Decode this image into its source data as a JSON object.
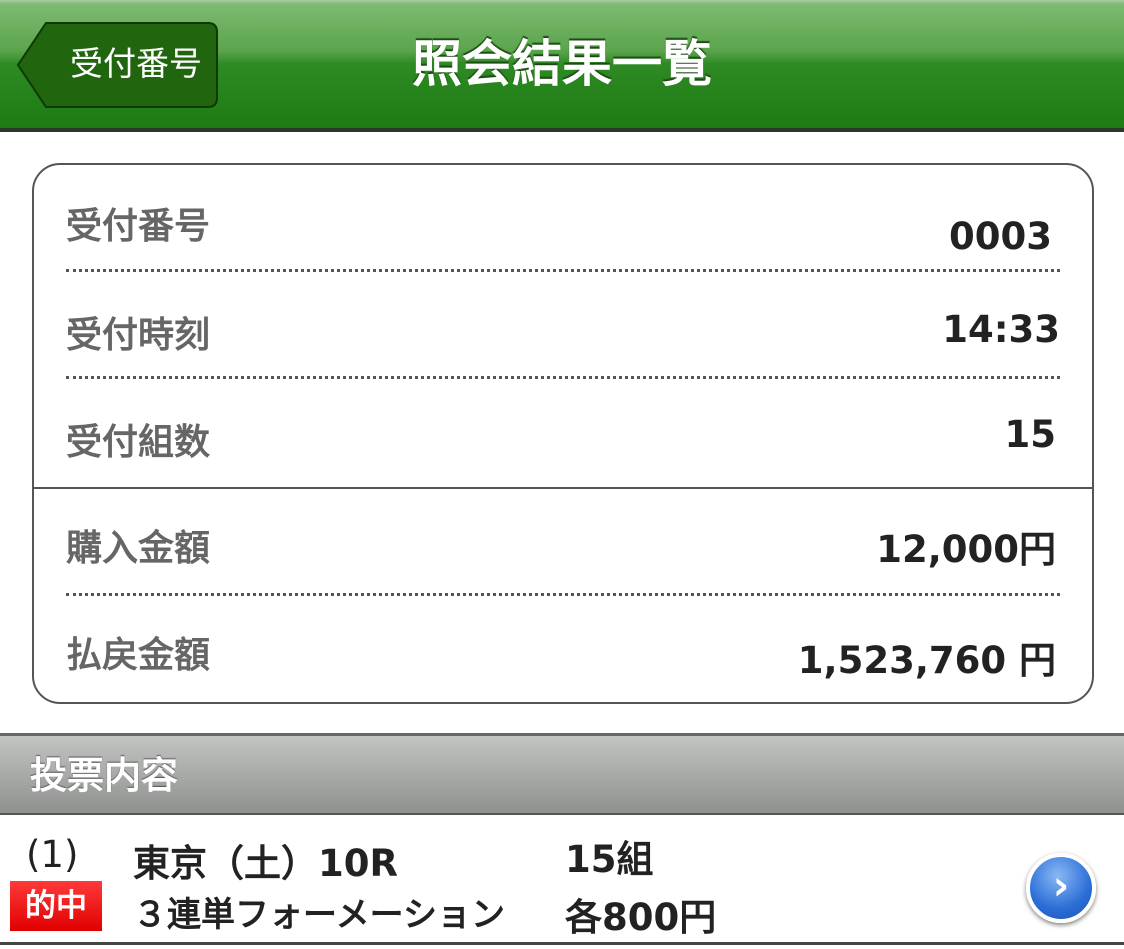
{
  "header": {
    "back_label": "受付番号",
    "title": "照会結果一覧",
    "color": "#2e8a22"
  },
  "summary": [
    {
      "label": "受付番号",
      "value": "0003"
    },
    {
      "label": "受付時刻",
      "value": "14:33"
    },
    {
      "label": "受付組数",
      "value": "15"
    },
    {
      "label": "購入金額",
      "value": "12,000円"
    },
    {
      "label": "払戻金額",
      "value": "1,523,760 円"
    }
  ],
  "section": {
    "title": "投票内容"
  },
  "bets": [
    {
      "index": "(1)",
      "race": "東京（土）10R",
      "count": "15組",
      "badge": "的中",
      "type": "３連単フォーメーション",
      "amount": "各800円",
      "icon": "chevron-right-icon"
    }
  ]
}
